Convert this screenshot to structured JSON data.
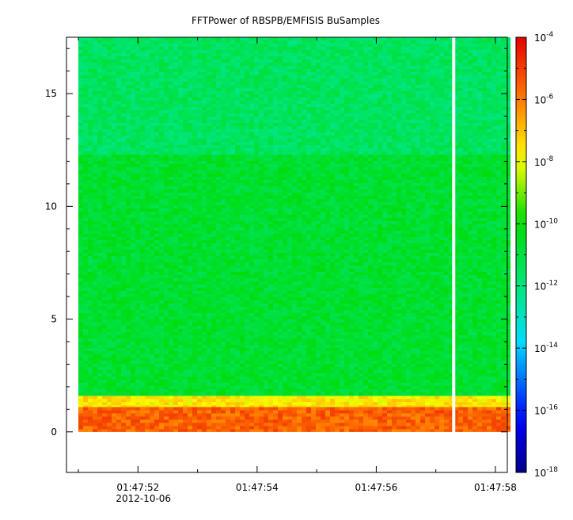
{
  "chart_data": {
    "type": "heatmap",
    "title": "FFTPower of RBSPB/EMFISIS  BuSamples",
    "xlabel": "",
    "ylabel": "",
    "x_start_label": "01:47:51",
    "xlim": [
      "01:47:50.8",
      "01:47:58.2"
    ],
    "x_ticks": [
      "01:47:52",
      "01:47:54",
      "01:47:56",
      "01:47:58"
    ],
    "x_date_label": "2012-10-06",
    "ylim": [
      -1.8,
      17.5
    ],
    "y_ticks": [
      0,
      5,
      10,
      15
    ],
    "data_x_range": [
      "01:47:51.0",
      "01:47:58.2"
    ],
    "data_y_range": [
      0,
      17.5
    ],
    "gap_time": "01:47:57.3",
    "bands": [
      {
        "y_range": [
          0,
          1.1
        ],
        "level_exp": -5.6
      },
      {
        "y_range": [
          1.1,
          1.6
        ],
        "level_exp": -7.6
      },
      {
        "y_range": [
          1.6,
          12.3
        ],
        "level_exp": -10.7
      },
      {
        "y_range": [
          12.3,
          17.5
        ],
        "level_exp": -11.5
      }
    ],
    "colorbar": {
      "scale": "log",
      "range": [
        1e-18,
        0.0001
      ],
      "tick_base": "10",
      "tick_exponents": [
        "-18",
        "-16",
        "-14",
        "-12",
        "-10",
        "-8",
        "-6",
        "-4"
      ]
    }
  }
}
